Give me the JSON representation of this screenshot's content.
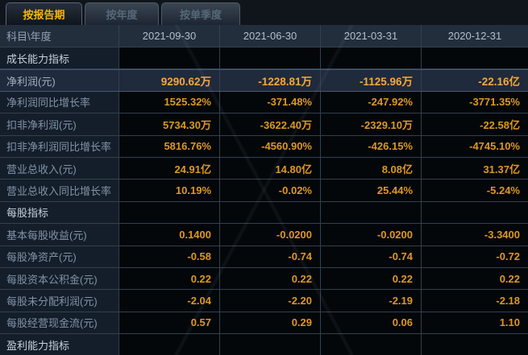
{
  "tabs": [
    {
      "label": "按报告期",
      "selected": true
    },
    {
      "label": "按年度",
      "selected": false
    },
    {
      "label": "按单季度",
      "selected": false
    }
  ],
  "table": {
    "header": {
      "label": "科目\\年度",
      "columns": [
        "2021-09-30",
        "2021-06-30",
        "2021-03-31",
        "2020-12-31"
      ]
    },
    "rows": [
      {
        "type": "section",
        "label": "成长能力指标",
        "values": [
          "",
          "",
          "",
          ""
        ]
      },
      {
        "type": "data",
        "label": "净利润(元)",
        "highlighted": true,
        "values": [
          "9290.62万",
          "-1228.81万",
          "-1125.96万",
          "-22.16亿"
        ]
      },
      {
        "type": "data",
        "label": "净利润同比增长率",
        "values": [
          "1525.32%",
          "-371.48%",
          "-247.92%",
          "-3771.35%"
        ]
      },
      {
        "type": "data",
        "label": "扣非净利润(元)",
        "values": [
          "5734.30万",
          "-3622.40万",
          "-2329.10万",
          "-22.58亿"
        ]
      },
      {
        "type": "data",
        "label": "扣非净利润同比增长率",
        "values": [
          "5816.76%",
          "-4560.90%",
          "-426.15%",
          "-4745.10%"
        ]
      },
      {
        "type": "data",
        "label": "营业总收入(元)",
        "values": [
          "24.91亿",
          "14.80亿",
          "8.08亿",
          "31.37亿"
        ]
      },
      {
        "type": "data",
        "label": "营业总收入同比增长率",
        "values": [
          "10.19%",
          "-0.02%",
          "25.44%",
          "-5.24%"
        ]
      },
      {
        "type": "section",
        "label": "每股指标",
        "values": [
          "",
          "",
          "",
          ""
        ]
      },
      {
        "type": "data",
        "label": "基本每股收益(元)",
        "values": [
          "0.1400",
          "-0.0200",
          "-0.0200",
          "-3.3400"
        ]
      },
      {
        "type": "data",
        "label": "每股净资产(元)",
        "values": [
          "-0.58",
          "-0.74",
          "-0.74",
          "-0.72"
        ]
      },
      {
        "type": "data",
        "label": "每股资本公积金(元)",
        "values": [
          "0.22",
          "0.22",
          "0.22",
          "0.22"
        ]
      },
      {
        "type": "data",
        "label": "每股未分配利润(元)",
        "values": [
          "-2.04",
          "-2.20",
          "-2.19",
          "-2.18"
        ]
      },
      {
        "type": "data",
        "label": "每股经营现金流(元)",
        "values": [
          "0.57",
          "0.29",
          "0.06",
          "1.10"
        ]
      },
      {
        "type": "section",
        "label": "盈利能力指标",
        "values": [
          "",
          "",
          "",
          ""
        ]
      }
    ]
  },
  "colors": {
    "accent_gold": "#f3b70c",
    "value_orange": "#dd9822",
    "highlight_row_bg": "#1f2a3c",
    "header_bg": "#232e3d",
    "label_column_bg": "#141e2a",
    "data_cell_bg": "#04070a"
  }
}
